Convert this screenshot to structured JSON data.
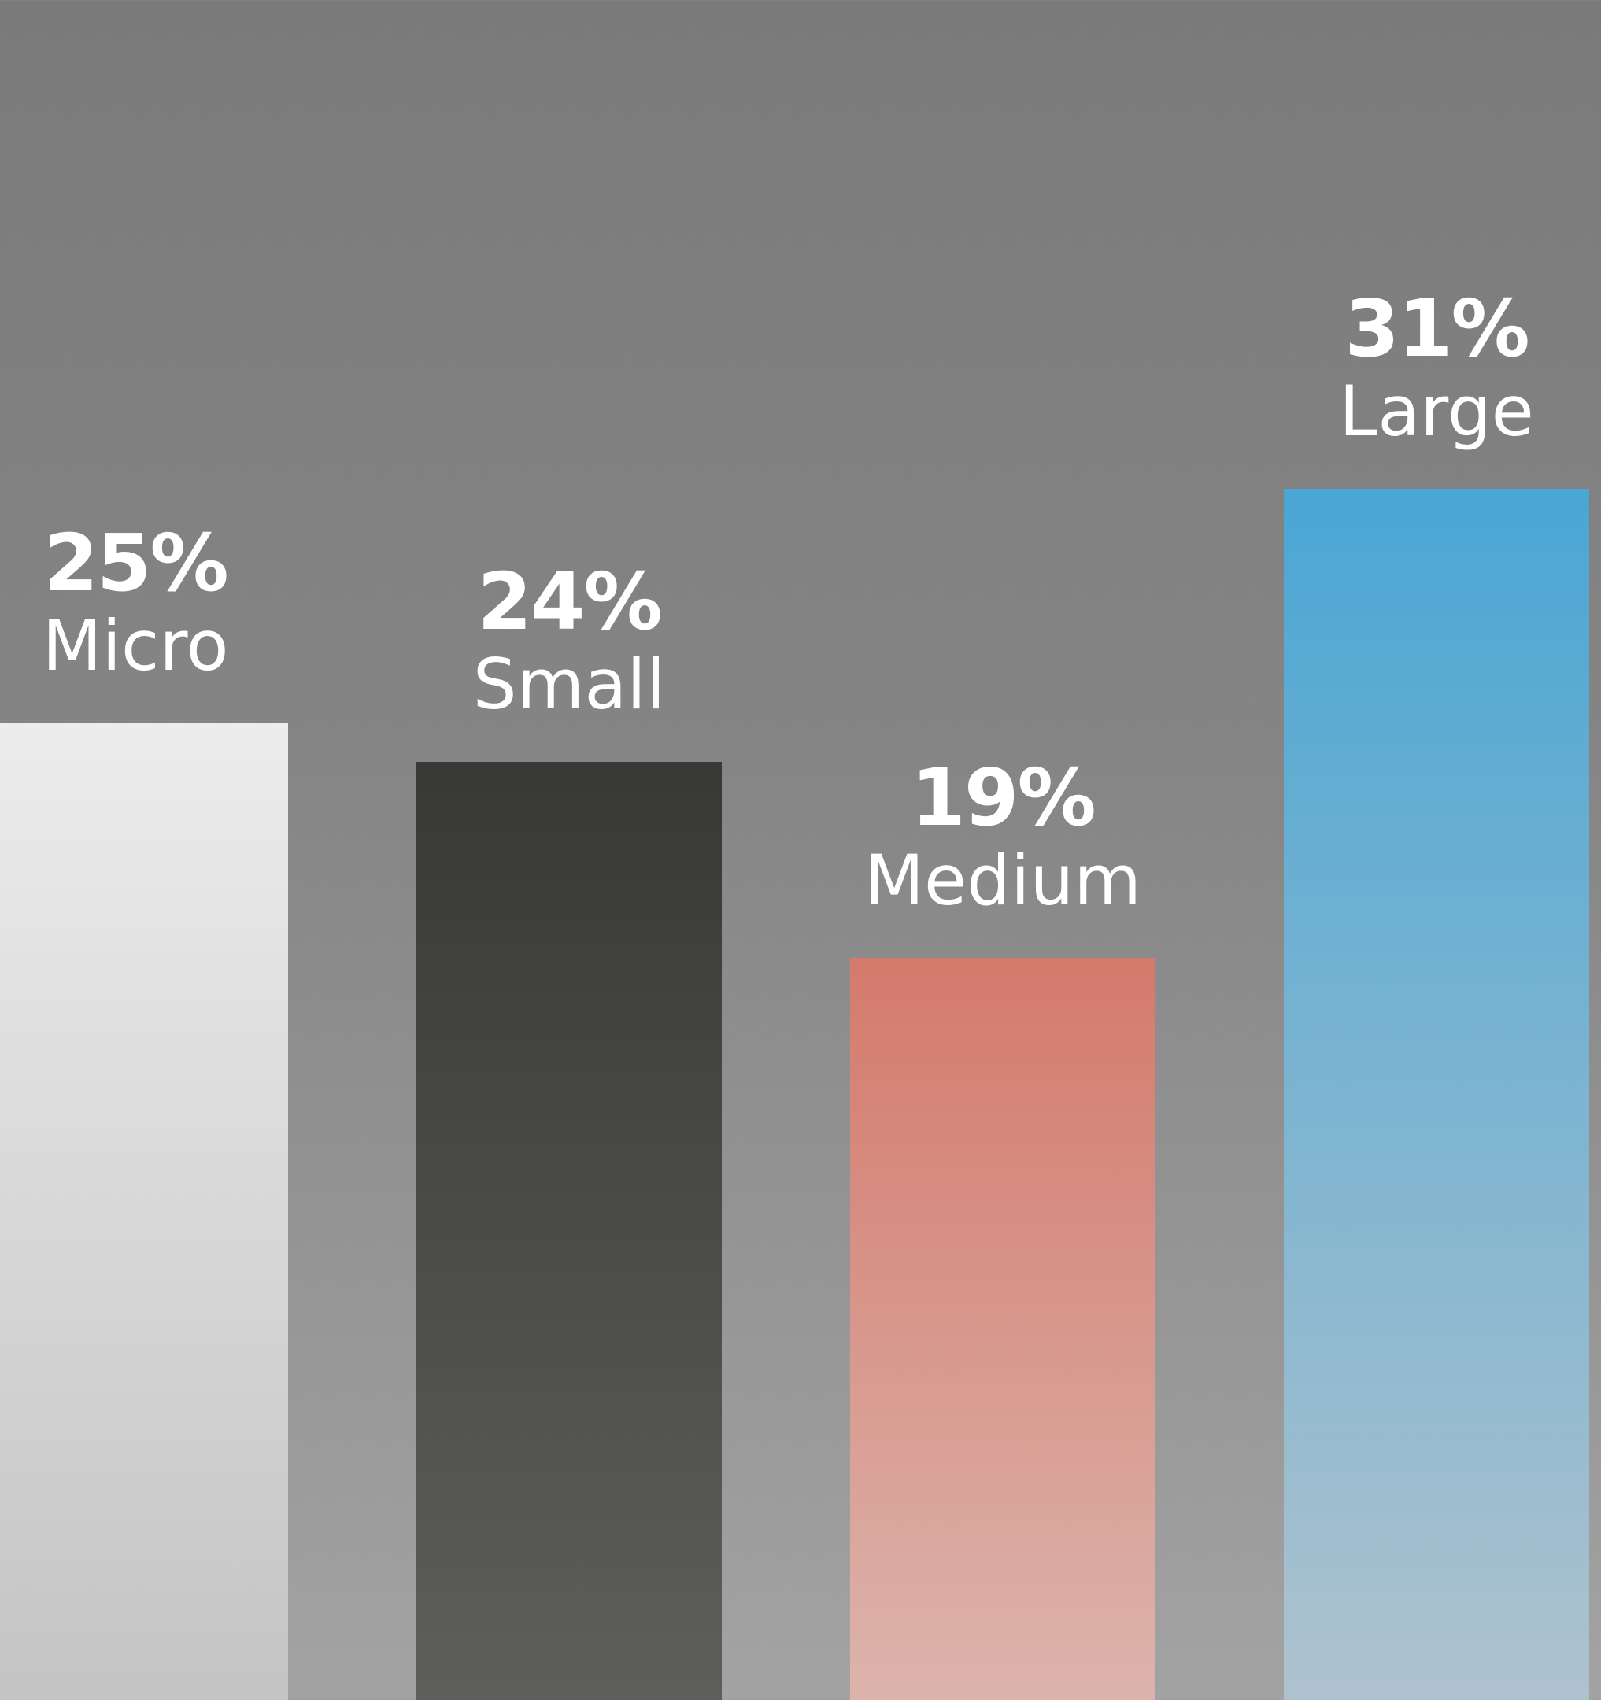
{
  "chart_data": {
    "type": "bar",
    "categories": [
      "Micro",
      "Small",
      "Medium",
      "Large"
    ],
    "values": [
      25,
      24,
      19,
      31
    ],
    "value_labels": [
      "25%",
      "24%",
      "19%",
      "31%"
    ],
    "unit": "%",
    "ylim": [
      0,
      43.5
    ],
    "grid": false,
    "legend": "none",
    "colors": [
      {
        "top": "#ececec",
        "bottom": "#c4c4c4"
      },
      {
        "top": "#383836",
        "bottom": "#5e5e5c"
      },
      {
        "top": "#d47a6c",
        "bottom": "#dcb4ac"
      },
      {
        "top": "#4aa6d4",
        "bottom": "#aec2ce"
      }
    ]
  }
}
